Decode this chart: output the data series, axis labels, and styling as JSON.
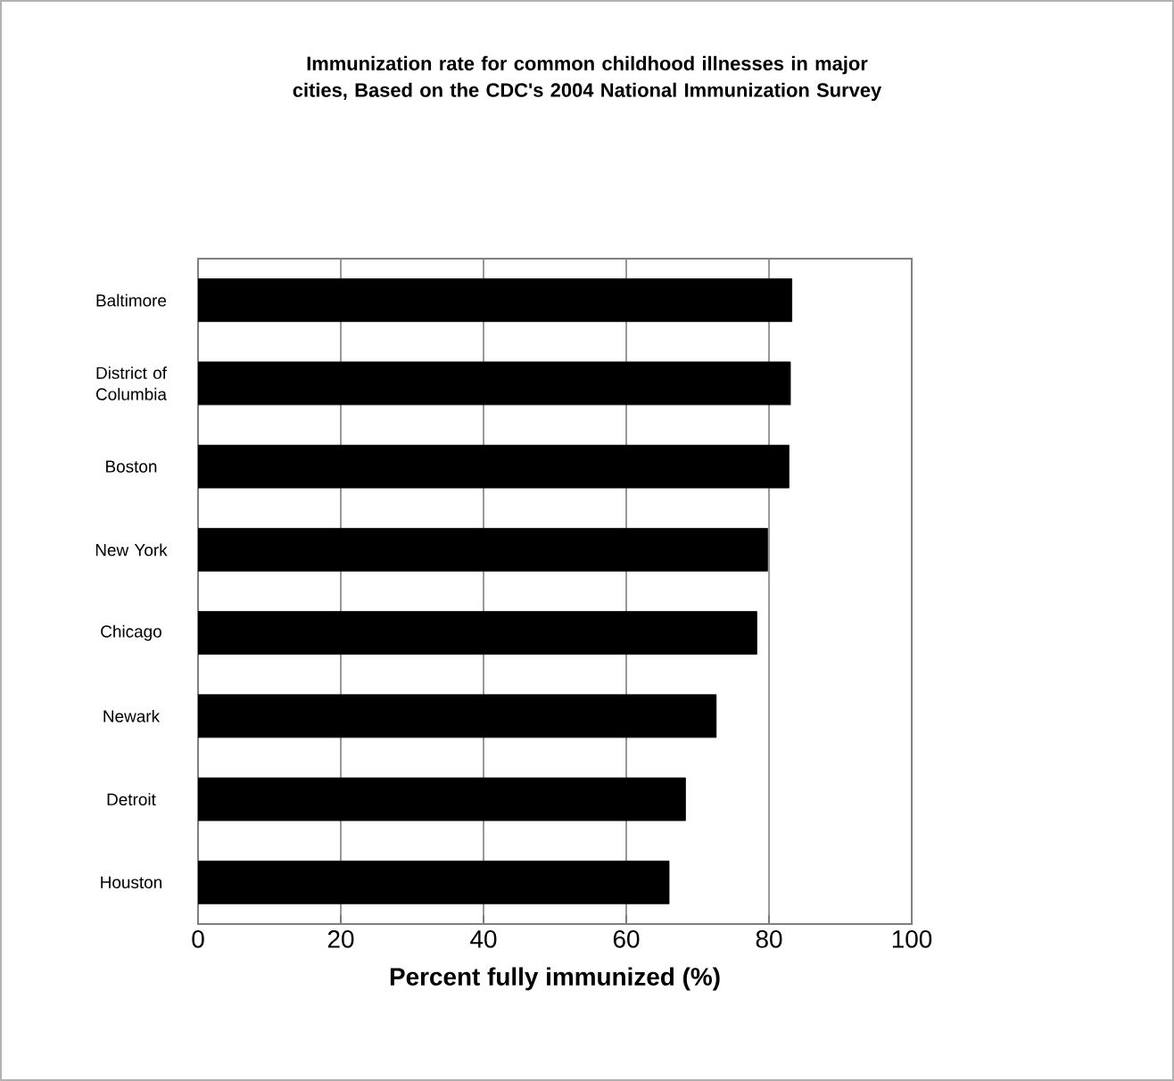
{
  "chart_data": {
    "type": "bar",
    "orientation": "horizontal",
    "title": "Immunization rate for common childhood illnesses in major cities, Based on the CDC's 2004 National Immunization Survey",
    "xlabel": "Percent fully immunized (%)",
    "categories": [
      "Baltimore",
      "District of Columbia",
      "Boston",
      "New York",
      "Chicago",
      "Newark",
      "Detroit",
      "Houston"
    ],
    "values": [
      83.2,
      83,
      82.8,
      79.8,
      78.3,
      72.6,
      68.3,
      66
    ],
    "color": "#000000",
    "xlim": [
      0,
      100
    ],
    "xticks": [
      0,
      20,
      40,
      60,
      80,
      100
    ],
    "grid": "x"
  }
}
